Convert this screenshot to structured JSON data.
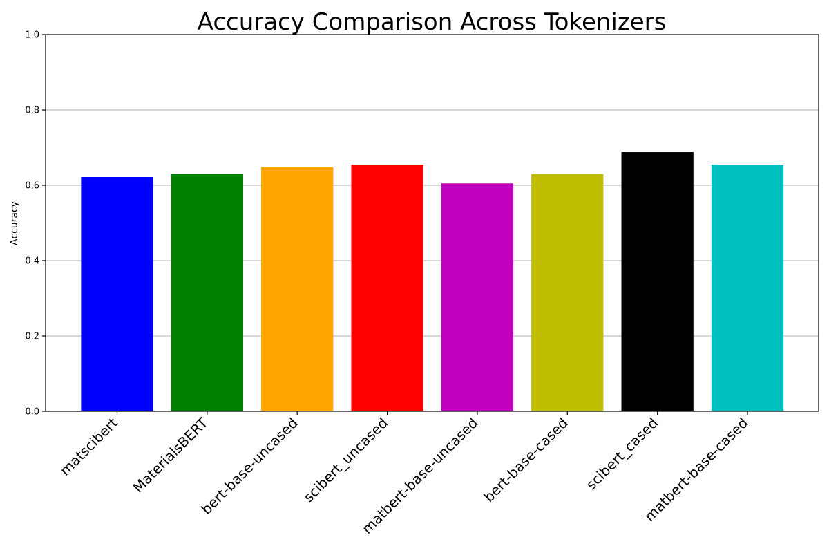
{
  "chart_data": {
    "type": "bar",
    "title": "Accuracy Comparison Across Tokenizers",
    "xlabel": "",
    "ylabel": "Accuracy",
    "ylim": [
      0,
      1.0
    ],
    "yticks": [
      0.0,
      0.2,
      0.4,
      0.6,
      0.8,
      1.0
    ],
    "ytick_labels": [
      "0.0",
      "0.2",
      "0.4",
      "0.6",
      "0.8",
      "1.0"
    ],
    "grid": "y",
    "categories": [
      "matscibert",
      "MaterialsBERT",
      "bert-base-uncased",
      "scibert_uncased",
      "matbert-base-uncased",
      "bert-base-cased",
      "scibert_cased",
      "matbert-base-cased"
    ],
    "values": [
      0.622,
      0.63,
      0.648,
      0.655,
      0.605,
      0.63,
      0.688,
      0.655
    ],
    "colors": [
      "#0000ff",
      "#008000",
      "#ffa500",
      "#ff0000",
      "#bf00bf",
      "#bfbf00",
      "#000000",
      "#00bfbf"
    ]
  }
}
